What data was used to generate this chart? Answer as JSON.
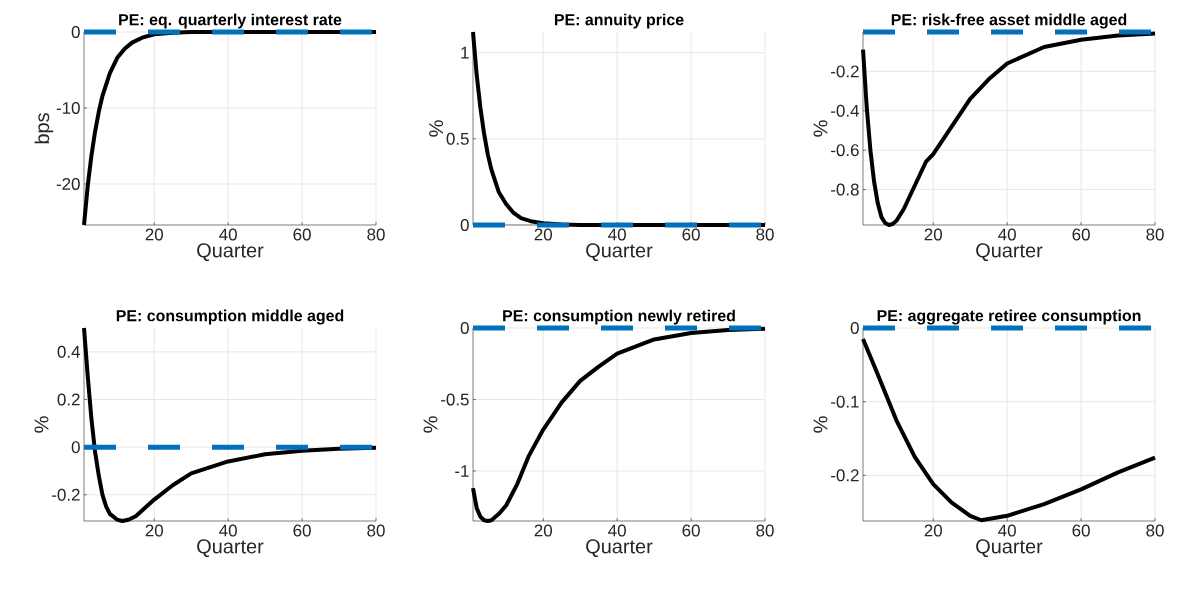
{
  "chart_data": [
    {
      "type": "line",
      "title": "PE: eq. quarterly interest rate",
      "xlabel": "Quarter",
      "ylabel": "bps",
      "x": [
        1,
        2,
        3,
        4,
        5,
        6,
        8,
        10,
        12,
        14,
        17,
        20,
        25,
        30,
        40,
        50,
        60,
        70,
        80
      ],
      "series": [
        {
          "color": "#000000",
          "values": [
            -25.4,
            -20.3,
            -16.3,
            -13.1,
            -10.5,
            -8.4,
            -5.4,
            -3.4,
            -2.2,
            -1.4,
            -0.7,
            -0.3,
            -0.1,
            0,
            0,
            0,
            0,
            0,
            0
          ]
        }
      ],
      "xlim": [
        1,
        80
      ],
      "ylim": [
        -25.4,
        0
      ],
      "xticks": [
        20,
        40,
        60,
        80
      ],
      "yticks": [
        -20,
        -10,
        0
      ],
      "grid": true,
      "ref_lines": [
        {
          "axis": "y",
          "value": 0,
          "color": "#0072bd",
          "line_style": "dashed"
        }
      ]
    },
    {
      "type": "line",
      "title": "PE: annuity price",
      "xlabel": "Quarter",
      "ylabel": "%",
      "x": [
        1,
        2,
        3,
        4,
        5,
        6,
        8,
        10,
        12,
        14,
        17,
        20,
        25,
        30,
        40,
        50,
        60,
        70,
        80
      ],
      "series": [
        {
          "color": "#000000",
          "values": [
            1.12,
            0.87,
            0.68,
            0.53,
            0.41,
            0.32,
            0.19,
            0.12,
            0.07,
            0.04,
            0.02,
            0.01,
            0.003,
            0,
            0,
            0,
            0,
            0,
            0
          ]
        }
      ],
      "xlim": [
        1,
        80
      ],
      "ylim": [
        0,
        1.12
      ],
      "xticks": [
        20,
        40,
        60,
        80
      ],
      "yticks": [
        0,
        0.5,
        1
      ],
      "grid": true,
      "ref_lines": [
        {
          "axis": "y",
          "value": 0,
          "color": "#0072bd",
          "line_style": "dashed"
        }
      ]
    },
    {
      "type": "line",
      "title": "PE: risk-free asset middle aged",
      "xlabel": "Quarter",
      "ylabel": "%",
      "x": [
        1,
        2,
        3,
        4,
        5,
        6,
        7,
        8,
        9,
        10,
        12,
        14,
        16,
        18,
        20,
        25,
        30,
        35,
        40,
        50,
        60,
        70,
        80
      ],
      "series": [
        {
          "color": "#000000",
          "values": [
            -0.09,
            -0.38,
            -0.6,
            -0.76,
            -0.87,
            -0.94,
            -0.97,
            -0.98,
            -0.975,
            -0.96,
            -0.9,
            -0.82,
            -0.74,
            -0.66,
            -0.62,
            -0.48,
            -0.34,
            -0.24,
            -0.16,
            -0.076,
            -0.039,
            -0.018,
            -0.008
          ]
        }
      ],
      "xlim": [
        1,
        80
      ],
      "ylim": [
        -0.98,
        0
      ],
      "xticks": [
        20,
        40,
        60,
        80
      ],
      "yticks": [
        -0.8,
        -0.6,
        -0.4,
        -0.2
      ],
      "grid": true,
      "ref_lines": [
        {
          "axis": "y",
          "value": 0,
          "color": "#0072bd",
          "line_style": "dashed"
        }
      ]
    },
    {
      "type": "line",
      "title": "PE: consumption middle aged",
      "xlabel": "Quarter",
      "ylabel": "%",
      "x": [
        1,
        2,
        3,
        4,
        5,
        6,
        7,
        8,
        10,
        11.4,
        13,
        15,
        20,
        25,
        30,
        40,
        50,
        60,
        70,
        80
      ],
      "series": [
        {
          "color": "#000000",
          "values": [
            0.5,
            0.3,
            0.12,
            -0.02,
            -0.12,
            -0.2,
            -0.25,
            -0.28,
            -0.305,
            -0.31,
            -0.305,
            -0.29,
            -0.22,
            -0.16,
            -0.11,
            -0.06,
            -0.03,
            -0.015,
            -0.007,
            -0.003
          ]
        }
      ],
      "xlim": [
        1,
        80
      ],
      "ylim": [
        -0.31,
        0.5
      ],
      "xticks": [
        20,
        40,
        60,
        80
      ],
      "yticks": [
        -0.2,
        0,
        0.2,
        0.4
      ],
      "grid": true,
      "ref_lines": [
        {
          "axis": "y",
          "value": 0,
          "color": "#0072bd",
          "line_style": "dashed"
        }
      ]
    },
    {
      "type": "line",
      "title": "PE: consumption newly retired",
      "xlabel": "Quarter",
      "ylabel": "%",
      "x": [
        1,
        2,
        3,
        4,
        5,
        6,
        8,
        10,
        13,
        16,
        20,
        25,
        30,
        35,
        40,
        50,
        60,
        70,
        80
      ],
      "series": [
        {
          "color": "#000000",
          "values": [
            -1.12,
            -1.26,
            -1.32,
            -1.345,
            -1.35,
            -1.345,
            -1.3,
            -1.24,
            -1.09,
            -0.9,
            -0.71,
            -0.52,
            -0.37,
            -0.27,
            -0.18,
            -0.08,
            -0.035,
            -0.014,
            -0.005
          ]
        }
      ],
      "xlim": [
        1,
        80
      ],
      "ylim": [
        -1.35,
        0
      ],
      "xticks": [
        20,
        40,
        60,
        80
      ],
      "yticks": [
        -1,
        -0.5,
        0
      ],
      "grid": true,
      "ref_lines": [
        {
          "axis": "y",
          "value": 0,
          "color": "#0072bd",
          "line_style": "dashed"
        }
      ]
    },
    {
      "type": "line",
      "title": "PE: aggregate retiree consumption",
      "xlabel": "Quarter",
      "ylabel": "%",
      "x": [
        1,
        5,
        10,
        15,
        20,
        25,
        30,
        33,
        40,
        50,
        60,
        70,
        80
      ],
      "series": [
        {
          "color": "#000000",
          "values": [
            -0.015,
            -0.063,
            -0.125,
            -0.175,
            -0.212,
            -0.237,
            -0.255,
            -0.261,
            -0.255,
            -0.239,
            -0.219,
            -0.196,
            -0.176
          ]
        }
      ],
      "xlim": [
        1,
        80
      ],
      "ylim": [
        -0.262,
        0
      ],
      "xticks": [
        20,
        40,
        60,
        80
      ],
      "yticks": [
        -0.2,
        -0.1,
        0
      ],
      "grid": true,
      "ref_lines": [
        {
          "axis": "y",
          "value": 0,
          "color": "#0072bd",
          "line_style": "dashed"
        }
      ]
    }
  ]
}
